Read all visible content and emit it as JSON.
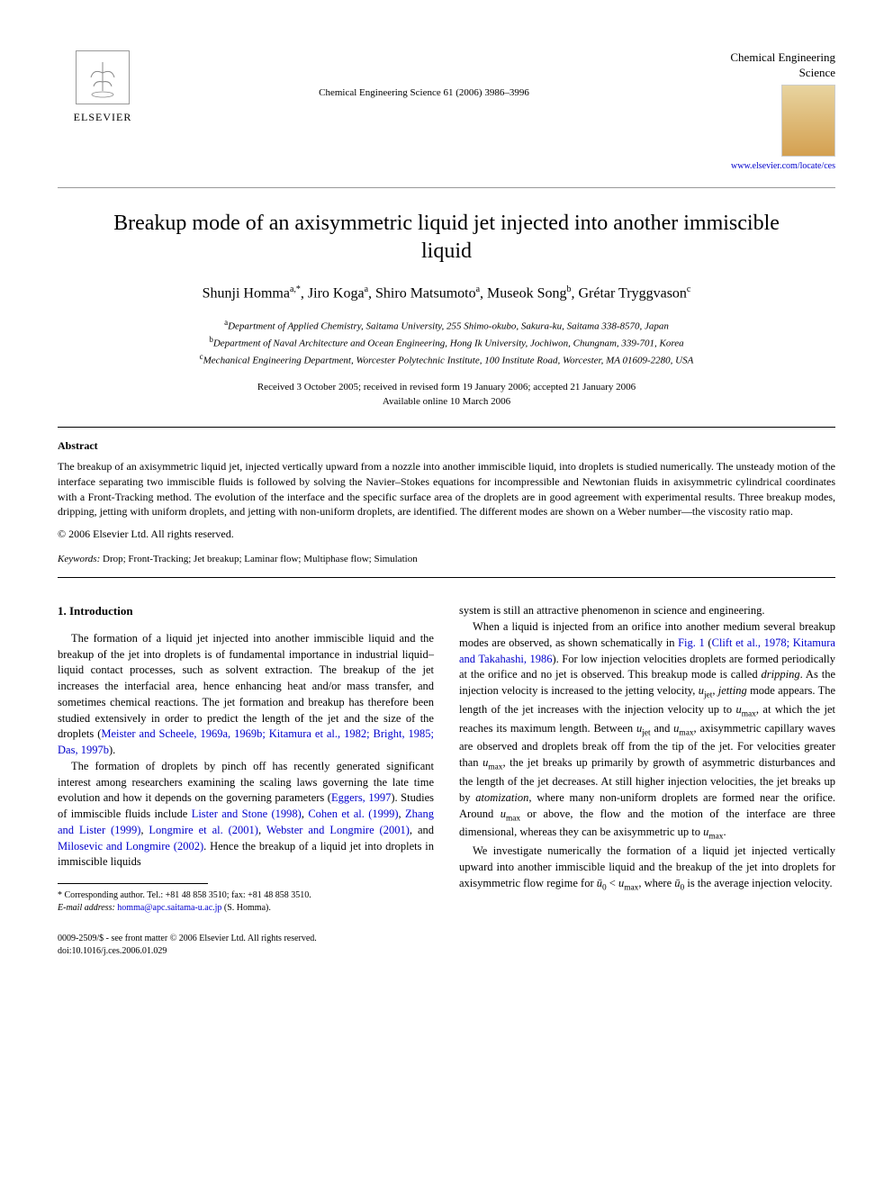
{
  "colors": {
    "text": "#000000",
    "link": "#0000cc",
    "rule": "#999999",
    "background": "#ffffff"
  },
  "typography": {
    "body_family": "Georgia, 'Times New Roman', serif",
    "title_size_pt": 24,
    "author_size_pt": 16,
    "body_size_pt": 12.5,
    "abstract_size_pt": 12,
    "small_size_pt": 11,
    "footnote_size_pt": 10
  },
  "publisher": {
    "name": "ELSEVIER",
    "logo_alt": "tree-logo"
  },
  "journal_ref": "Chemical Engineering Science 61 (2006) 3986–3996",
  "journal": {
    "name": "Chemical Engineering Science",
    "url": "www.elsevier.com/locate/ces"
  },
  "title": "Breakup mode of an axisymmetric liquid jet injected into another immiscible liquid",
  "authors_html": "Shunji Homma<sup>a,*</sup>, Jiro Koga<sup>a</sup>, Shiro Matsumoto<sup>a</sup>, Museok Song<sup>b</sup>, Grétar Tryggvason<sup>c</sup>",
  "affiliations": {
    "a": "Department of Applied Chemistry, Saitama University, 255 Shimo-okubo, Sakura-ku, Saitama 338-8570, Japan",
    "b": "Department of Naval Architecture and Ocean Engineering, Hong Ik University, Jochiwon, Chungnam, 339-701, Korea",
    "c": "Mechanical Engineering Department, Worcester Polytechnic Institute, 100 Institute Road, Worcester, MA 01609-2280, USA"
  },
  "dates": {
    "line1": "Received 3 October 2005; received in revised form 19 January 2006; accepted 21 January 2006",
    "line2": "Available online 10 March 2006"
  },
  "abstract": {
    "heading": "Abstract",
    "text": "The breakup of an axisymmetric liquid jet, injected vertically upward from a nozzle into another immiscible liquid, into droplets is studied numerically. The unsteady motion of the interface separating two immiscible fluids is followed by solving the Navier–Stokes equations for incompressible and Newtonian fluids in axisymmetric cylindrical coordinates with a Front-Tracking method. The evolution of the interface and the specific surface area of the droplets are in good agreement with experimental results. Three breakup modes, dripping, jetting with uniform droplets, and jetting with non-uniform droplets, are identified. The different modes are shown on a Weber number—the viscosity ratio map.",
    "copyright": "© 2006 Elsevier Ltd. All rights reserved."
  },
  "keywords": {
    "label": "Keywords:",
    "text": "Drop; Front-Tracking; Jet breakup; Laminar flow; Multiphase flow; Simulation"
  },
  "section1": {
    "heading": "1. Introduction"
  },
  "left_col": {
    "p1_html": "The formation of a liquid jet injected into another immiscible liquid and the breakup of the jet into droplets is of fundamental importance in industrial liquid–liquid contact processes, such as solvent extraction. The breakup of the jet increases the interfacial area, hence enhancing heat and/or mass transfer, and sometimes chemical reactions. The jet formation and breakup has therefore been studied extensively in order to predict the length of the jet and the size of the droplets (<span class=\"cite\">Meister and Scheele, 1969a, 1969b; Kitamura et al., 1982; Bright, 1985; Das, 1997b</span>).",
    "p2_html": "The formation of droplets by pinch off has recently generated significant interest among researchers examining the scaling laws governing the late time evolution and how it depends on the governing parameters (<span class=\"cite\">Eggers, 1997</span>). Studies of immiscible fluids include <span class=\"cite\">Lister and Stone (1998)</span>, <span class=\"cite\">Cohen et al. (1999)</span>, <span class=\"cite\">Zhang and Lister (1999)</span>, <span class=\"cite\">Longmire et al. (2001)</span>, <span class=\"cite\">Webster and Longmire (2001)</span>, and <span class=\"cite\">Milosevic and Longmire (2002)</span>. Hence the breakup of a liquid jet into droplets in immiscible liquids"
  },
  "right_col": {
    "p0": "system is still an attractive phenomenon in science and engineering.",
    "p1_html": "When a liquid is injected from an orifice into another medium several breakup modes are observed, as shown schematically in <span class=\"cite\">Fig. 1</span> (<span class=\"cite\">Clift et al., 1978; Kitamura and Takahashi, 1986</span>). For low injection velocities droplets are formed periodically at the orifice and no jet is observed. This breakup mode is called <span class=\"ital\">dripping</span>. As the injection velocity is increased to the jetting velocity, <span class=\"ital\">u</span><sub>jet</sub>, <span class=\"ital\">jetting</span> mode appears. The length of the jet increases with the injection velocity up to <span class=\"ital\">u</span><sub>max</sub>, at which the jet reaches its maximum length. Between <span class=\"ital\">u</span><sub>jet</sub> and <span class=\"ital\">u</span><sub>max</sub>, axisymmetric capillary waves are observed and droplets break off from the tip of the jet. For velocities greater than <span class=\"ital\">u</span><sub>max</sub>, the jet breaks up primarily by growth of asymmetric disturbances and the length of the jet decreases. At still higher injection velocities, the jet breaks up by <span class=\"ital\">atomization</span>, where many non-uniform droplets are formed near the orifice. Around <span class=\"ital\">u</span><sub>max</sub> or above, the flow and the motion of the interface are three dimensional, whereas they can be axisymmetric up to <span class=\"ital\">u</span><sub>max</sub>.",
    "p2_html": "We investigate numerically the formation of a liquid jet injected vertically upward into another immiscible liquid and the breakup of the jet into droplets for axisymmetric flow regime for <span class=\"ital\">ū</span><sub>0</sub> &lt; <span class=\"ital\">u</span><sub>max</sub>, where <span class=\"ital\">ū</span><sub>0</sub> is the average injection velocity."
  },
  "footnote": {
    "corr": "* Corresponding author. Tel.: +81 48 858 3510; fax: +81 48 858 3510.",
    "email_label": "E-mail address:",
    "email": "homma@apc.saitama-u.ac.jp",
    "email_name": "(S. Homma)."
  },
  "footer": {
    "line1": "0009-2509/$ - see front matter © 2006 Elsevier Ltd. All rights reserved.",
    "line2": "doi:10.1016/j.ces.2006.01.029"
  }
}
